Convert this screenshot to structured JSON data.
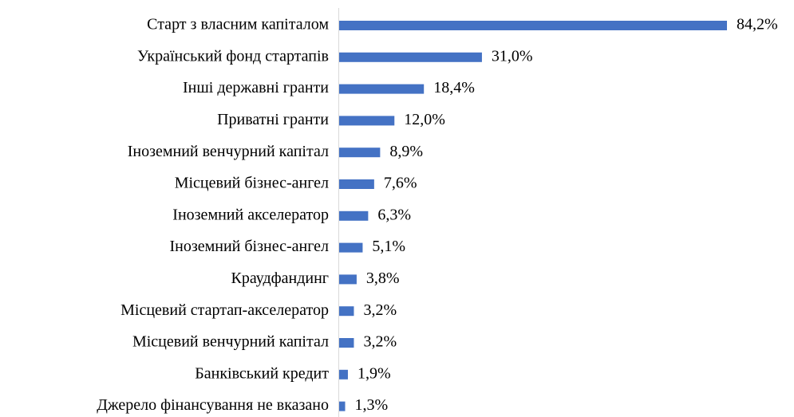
{
  "chart_data": {
    "type": "bar",
    "orientation": "horizontal",
    "categories": [
      "Старт з власним капіталом",
      "Український фонд стартапів",
      "Інші державні гранти",
      "Приватні гранти",
      "Іноземний венчурний капітал",
      "Місцевий бізнес-ангел",
      "Іноземний акселератор",
      "Іноземний бізнес-ангел",
      "Краудфандинг",
      "Місцевий стартап-акселератор",
      "Місцевий венчурний капітал",
      "Банківський кредит",
      "Джерело фінансування не вказано"
    ],
    "values": [
      84.2,
      31.0,
      18.4,
      12.0,
      8.9,
      7.6,
      6.3,
      5.1,
      3.8,
      3.2,
      3.2,
      1.9,
      1.3
    ],
    "value_labels": [
      "84,2%",
      "31,0%",
      "18,4%",
      "12,0%",
      "8,9%",
      "7,6%",
      "6,3%",
      "5,1%",
      "3,8%",
      "3,2%",
      "3,2%",
      "1,9%",
      "1,3%"
    ],
    "color": "#4472c4"
  }
}
